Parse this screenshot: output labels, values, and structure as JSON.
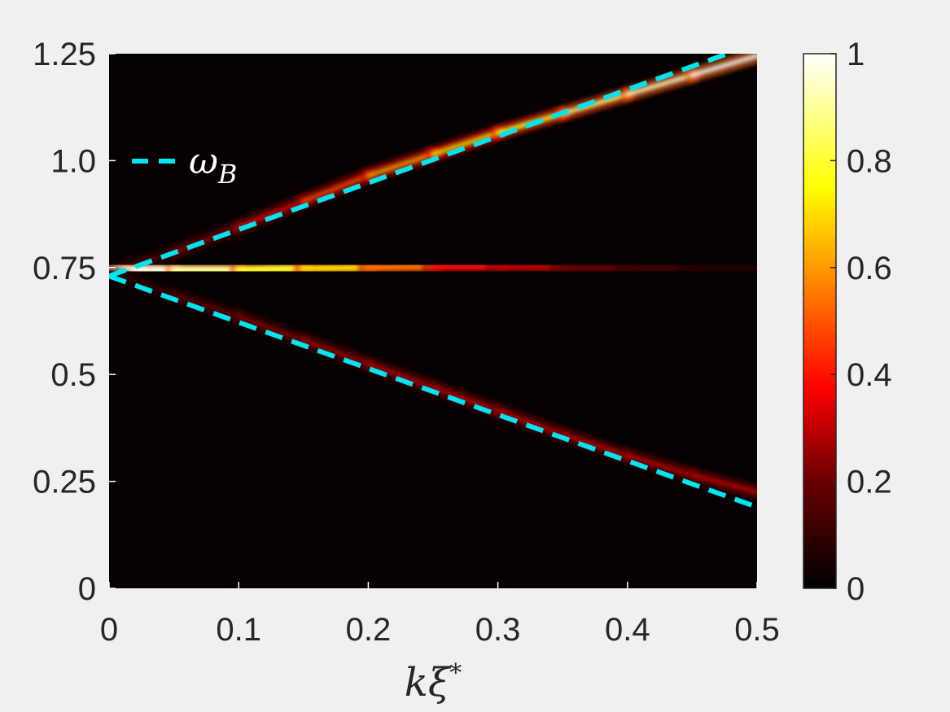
{
  "chart_data": {
    "type": "heatmap",
    "title": "",
    "xlabel": "kξ*",
    "ylabel": "",
    "xlim": [
      0,
      0.5
    ],
    "ylim": [
      0,
      1.25
    ],
    "x_ticks": [
      0,
      0.1,
      0.2,
      0.3,
      0.4,
      0.5
    ],
    "x_tick_labels": [
      "0",
      "0.1",
      "0.2",
      "0.3",
      "0.4",
      "0.5"
    ],
    "y_ticks": [
      0,
      0.25,
      0.5,
      0.75,
      1.0,
      1.25
    ],
    "y_tick_labels": [
      "0",
      "0.25",
      "0.5",
      "0.75",
      "1.0",
      "1.25"
    ],
    "colorbar": {
      "colormap": "hot",
      "range": [
        0,
        1
      ],
      "ticks": [
        0,
        0.2,
        0.4,
        0.6,
        0.8,
        1
      ],
      "tick_labels": [
        "0",
        "0.2",
        "0.4",
        "0.6",
        "0.8",
        "1"
      ]
    },
    "colors": {
      "background": "#f0f0f0",
      "plot_background": "#060000",
      "dashed_line": "#00e5f2",
      "text": "#262626"
    },
    "legend": {
      "placement": "top-left",
      "entries": [
        {
          "label": "ω_B",
          "style": "dashed",
          "color": "#00e5f2"
        }
      ]
    },
    "series": [
      {
        "name": "ω_B",
        "style": "dashed",
        "lines": [
          {
            "x": [
              0,
              0.5
            ],
            "y": [
              0.73,
              1.275
            ]
          },
          {
            "x": [
              0,
              0.5
            ],
            "y": [
              0.73,
              0.19
            ]
          }
        ]
      }
    ],
    "bands": [
      {
        "branch": "upper",
        "x": [
          0,
          0.05,
          0.1,
          0.15,
          0.2,
          0.25,
          0.3,
          0.35,
          0.4,
          0.45,
          0.5
        ],
        "y": [
          0.74,
          0.785,
          0.845,
          0.905,
          0.965,
          1.015,
          1.065,
          1.11,
          1.155,
          1.2,
          1.245
        ],
        "intensity": [
          0.1,
          0.15,
          0.25,
          0.4,
          0.55,
          0.65,
          0.75,
          0.85,
          0.9,
          0.95,
          1.0
        ]
      },
      {
        "branch": "middle",
        "x": [
          0,
          0.05,
          0.1,
          0.15,
          0.2,
          0.25,
          0.3,
          0.35,
          0.4,
          0.45,
          0.5
        ],
        "y": [
          0.745,
          0.745,
          0.745,
          0.748,
          0.75,
          0.752,
          0.752,
          0.75,
          0.75,
          0.75,
          0.75
        ],
        "intensity": [
          1.0,
          0.95,
          0.85,
          0.75,
          0.65,
          0.45,
          0.35,
          0.22,
          0.12,
          0.08,
          0.05
        ]
      },
      {
        "branch": "lower",
        "x": [
          0,
          0.05,
          0.1,
          0.15,
          0.2,
          0.25,
          0.3,
          0.35,
          0.4,
          0.45,
          0.5
        ],
        "y": [
          0.74,
          0.685,
          0.635,
          0.58,
          0.525,
          0.47,
          0.415,
          0.36,
          0.31,
          0.265,
          0.225
        ],
        "intensity": [
          0.05,
          0.12,
          0.18,
          0.22,
          0.25,
          0.27,
          0.28,
          0.28,
          0.28,
          0.28,
          0.3
        ]
      }
    ]
  }
}
